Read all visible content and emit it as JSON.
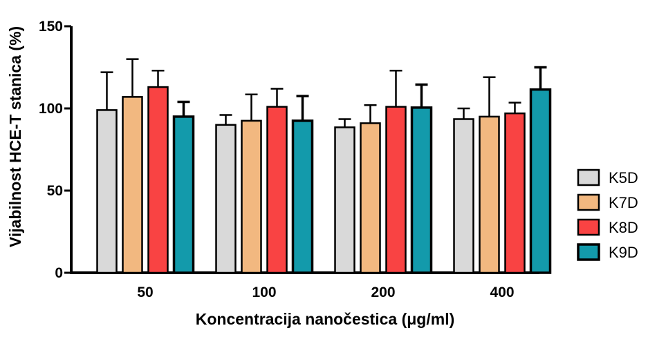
{
  "chart_data": {
    "type": "bar",
    "title": "",
    "xlabel": "Koncentracija nanočestica (μg/ml)",
    "ylabel": "Vijabilnost HCE-T stanica (%)",
    "ylim": [
      0,
      150
    ],
    "yticks": [
      0,
      50,
      100,
      150
    ],
    "categories": [
      "50",
      "100",
      "200",
      "400"
    ],
    "series": [
      {
        "name": "K5D",
        "color": "#d9d9d9",
        "values": [
          99,
          90,
          88.5,
          93.5
        ],
        "errors": [
          23,
          6,
          5,
          6.5
        ]
      },
      {
        "name": "K7D",
        "color": "#f2b880",
        "values": [
          107,
          92.5,
          91,
          95
        ],
        "errors": [
          23,
          16,
          11,
          24
        ]
      },
      {
        "name": "K8D",
        "color": "#f94343",
        "values": [
          113,
          101,
          101,
          97
        ],
        "errors": [
          10,
          11,
          22,
          6.5
        ]
      },
      {
        "name": "K9D",
        "color": "#139aab",
        "values": [
          95,
          92.5,
          100.5,
          111.5
        ],
        "errors": [
          9,
          15,
          14,
          13.5
        ]
      }
    ],
    "legend_position": "right"
  }
}
